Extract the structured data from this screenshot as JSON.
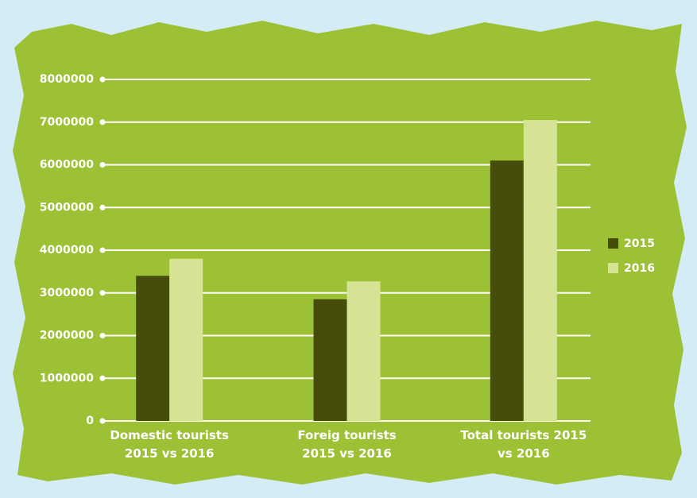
{
  "chart_data": {
    "type": "bar",
    "categories": [
      "Domestic tourists 2015 vs 2016",
      "Foreig tourists 2015 vs 2016",
      "Total tourists 2015 vs 2016"
    ],
    "series": [
      {
        "name": "2015",
        "color": "#464d0b",
        "values": [
          3400000,
          2850000,
          6100000
        ]
      },
      {
        "name": "2016",
        "color": "#d6e394",
        "values": [
          3800000,
          3270000,
          7050000
        ]
      }
    ],
    "ylim": [
      0,
      8000000
    ],
    "yticks": [
      0,
      1000000,
      2000000,
      3000000,
      4000000,
      5000000,
      6000000,
      7000000,
      8000000
    ],
    "grid": true,
    "legend": "right"
  }
}
